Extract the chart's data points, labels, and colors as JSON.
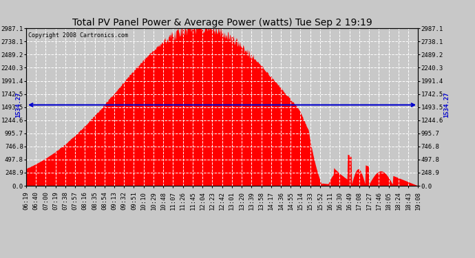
{
  "title": "Total PV Panel Power & Average Power (watts) Tue Sep 2 19:19",
  "copyright": "Copyright 2008 Cartronics.com",
  "avg_power": 1534.27,
  "yticks": [
    0.0,
    248.9,
    497.8,
    746.8,
    995.7,
    1244.6,
    1493.5,
    1742.5,
    1991.4,
    2240.3,
    2489.2,
    2738.1,
    2987.1
  ],
  "ymax": 2987.1,
  "bg_color": "#c8c8c8",
  "plot_bg_color": "#c8c8c8",
  "fill_color": "#ff0000",
  "line_color": "#0000cc",
  "title_color": "#000000",
  "grid_color": "#ffffff",
  "xtick_labels": [
    "06:19",
    "06:40",
    "07:00",
    "07:19",
    "07:38",
    "07:57",
    "08:16",
    "08:35",
    "08:54",
    "09:13",
    "09:32",
    "09:51",
    "10:10",
    "10:29",
    "10:48",
    "11:07",
    "11:26",
    "11:45",
    "12:04",
    "12:23",
    "12:42",
    "13:01",
    "13:20",
    "13:39",
    "13:58",
    "14:17",
    "14:36",
    "14:55",
    "15:14",
    "15:33",
    "15:52",
    "16:11",
    "16:30",
    "16:49",
    "17:08",
    "17:27",
    "17:46",
    "18:05",
    "18:24",
    "18:43",
    "19:08"
  ],
  "title_fontsize": 10,
  "tick_fontsize": 6.5,
  "copyright_fontsize": 6
}
